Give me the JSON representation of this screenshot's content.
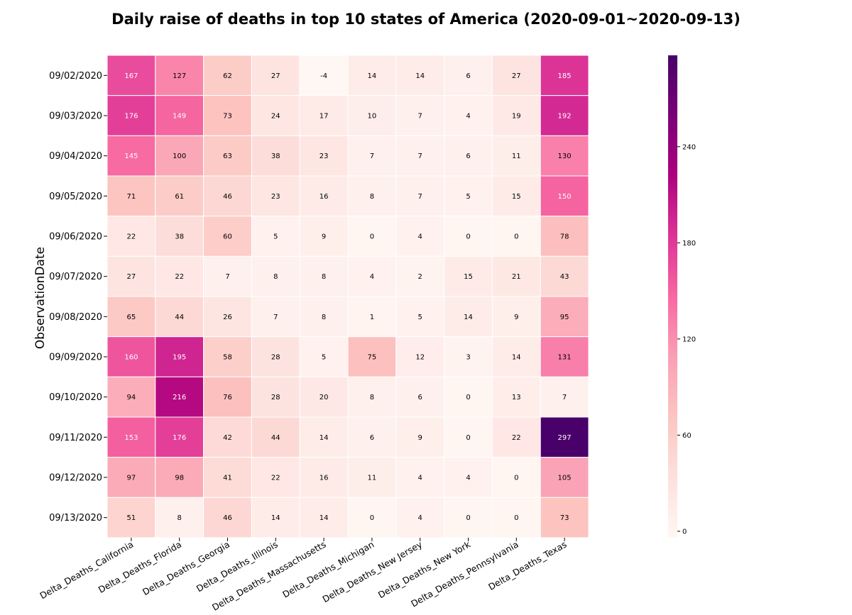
{
  "chart_data": {
    "type": "heatmap",
    "title": "Daily raise of deaths in top 10 states of America (2020-09-01~2020-09-13)",
    "ylabel": "ObservationDate",
    "xlabel": "",
    "columns": [
      "Delta_Deaths_California",
      "Delta_Deaths_Florida",
      "Delta_Deaths_Georgia",
      "Delta_Deaths_Illinois",
      "Delta_Deaths_Massachusetts",
      "Delta_Deaths_Michigan",
      "Delta_Deaths_New Jersey",
      "Delta_Deaths_New York",
      "Delta_Deaths_Pennsylvania",
      "Delta_Deaths_Texas"
    ],
    "rows": [
      "09/02/2020",
      "09/03/2020",
      "09/04/2020",
      "09/05/2020",
      "09/06/2020",
      "09/07/2020",
      "09/08/2020",
      "09/09/2020",
      "09/10/2020",
      "09/11/2020",
      "09/12/2020",
      "09/13/2020"
    ],
    "values": [
      [
        167,
        127,
        62,
        27,
        -4,
        14,
        14,
        6,
        27,
        185
      ],
      [
        176,
        149,
        73,
        24,
        17,
        10,
        7,
        4,
        19,
        192
      ],
      [
        145,
        100,
        63,
        38,
        23,
        7,
        7,
        6,
        11,
        130
      ],
      [
        71,
        61,
        46,
        23,
        16,
        8,
        7,
        5,
        15,
        150
      ],
      [
        22,
        38,
        60,
        5,
        9,
        0,
        4,
        0,
        0,
        78
      ],
      [
        27,
        22,
        7,
        8,
        8,
        4,
        2,
        15,
        21,
        43
      ],
      [
        65,
        44,
        26,
        7,
        8,
        1,
        5,
        14,
        9,
        95
      ],
      [
        160,
        195,
        58,
        28,
        5,
        75,
        12,
        3,
        14,
        131
      ],
      [
        94,
        216,
        76,
        28,
        20,
        8,
        6,
        0,
        13,
        7
      ],
      [
        153,
        176,
        42,
        44,
        14,
        6,
        9,
        0,
        22,
        297
      ],
      [
        97,
        98,
        41,
        22,
        16,
        11,
        4,
        4,
        0,
        105
      ],
      [
        51,
        8,
        46,
        14,
        14,
        0,
        4,
        0,
        0,
        73
      ]
    ],
    "colormap": "RdPu",
    "vmin": -4,
    "vmax": 297,
    "colorbar_ticks": [
      0,
      60,
      120,
      180,
      240
    ],
    "annotated": true
  }
}
